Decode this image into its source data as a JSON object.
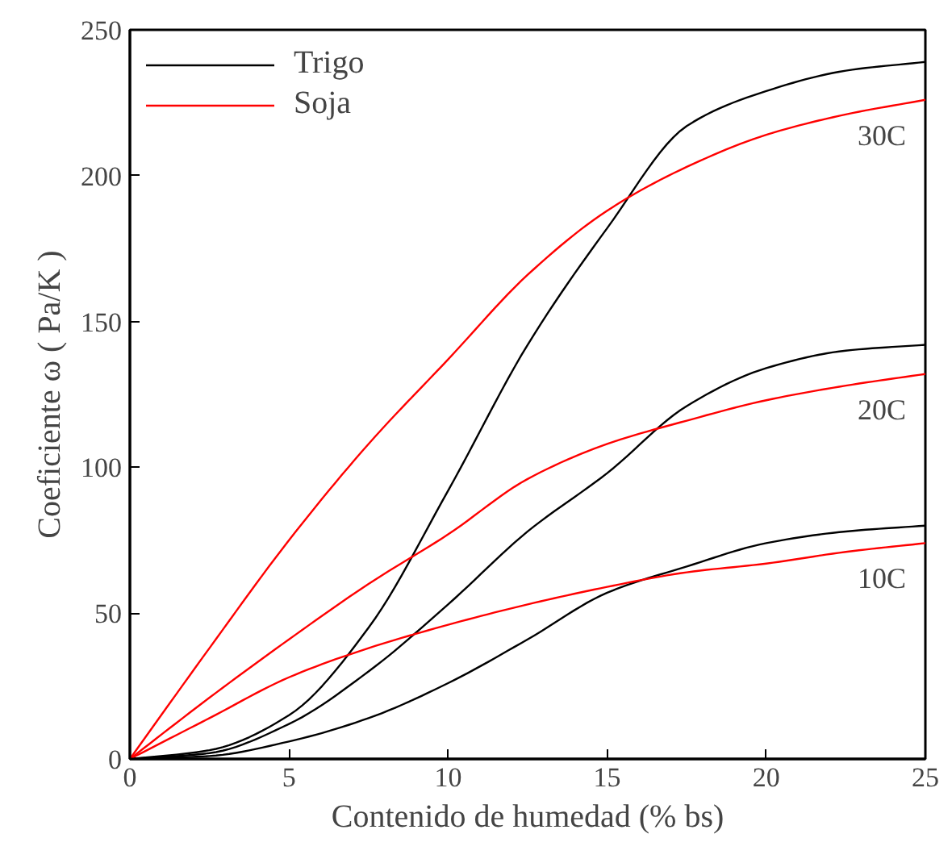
{
  "chart_data": {
    "type": "line",
    "xlabel": "Contenido de humedad (% bs)",
    "ylabel": "Coeficiente ω ( Pa/K )",
    "x": [
      0,
      2.5,
      5,
      7.5,
      10,
      12.5,
      15,
      17.5,
      20,
      22.5,
      25
    ],
    "series": [
      {
        "name": "Trigo",
        "color": "#000000",
        "values": [
          0,
          3,
          15,
          45,
          92,
          142,
          182,
          217,
          229,
          236,
          239
        ]
      },
      {
        "name": "Soja",
        "color": "#ff0000",
        "values": [
          0,
          38,
          75,
          108,
          137,
          166,
          188,
          203,
          214,
          221,
          226
        ]
      },
      {
        "color": "#000000",
        "values": [
          0,
          2,
          12,
          30,
          53,
          78,
          98,
          121,
          134,
          140,
          142
        ]
      },
      {
        "color": "#ff0000",
        "values": [
          0,
          21,
          41,
          60,
          77,
          96,
          108,
          116,
          123,
          128,
          132
        ]
      },
      {
        "color": "#000000",
        "values": [
          0,
          1,
          6,
          14,
          26,
          41,
          57,
          66,
          74,
          78,
          80
        ]
      },
      {
        "color": "#ff0000",
        "values": [
          0,
          14,
          28,
          38,
          46,
          53,
          59,
          64,
          67,
          71,
          74
        ]
      }
    ],
    "annotations": [
      "30C",
      "20C",
      "10C"
    ],
    "xlim": [
      0,
      25
    ],
    "ylim": [
      0,
      250
    ],
    "xticks": [
      0,
      5,
      10,
      15,
      20,
      25
    ],
    "yticks": [
      0,
      50,
      100,
      150,
      200,
      250
    ],
    "grid": false,
    "legend": "top left",
    "marker": "none",
    "line_style": "solid"
  }
}
